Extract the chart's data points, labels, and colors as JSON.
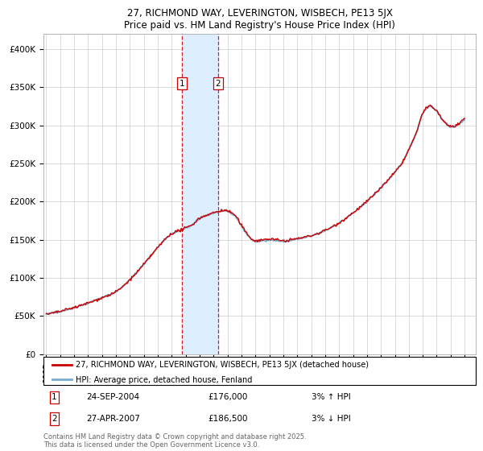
{
  "title_line1": "27, RICHMOND WAY, LEVERINGTON, WISBECH, PE13 5JX",
  "title_line2": "Price paid vs. HM Land Registry's House Price Index (HPI)",
  "legend_entry1": "27, RICHMOND WAY, LEVERINGTON, WISBECH, PE13 5JX (detached house)",
  "legend_entry2": "HPI: Average price, detached house, Fenland",
  "transaction1_date": "24-SEP-2004",
  "transaction1_price": "£176,000",
  "transaction1_hpi": "3% ↑ HPI",
  "transaction2_date": "27-APR-2007",
  "transaction2_price": "£186,500",
  "transaction2_hpi": "3% ↓ HPI",
  "copyright_text": "Contains HM Land Registry data © Crown copyright and database right 2025.\nThis data is licensed under the Open Government Licence v3.0.",
  "line_color_red": "#cc0000",
  "line_color_blue": "#7aadcf",
  "shading_color": "#ddeeff",
  "vline_color": "#cc0000",
  "marker1_x_year": 2004.73,
  "marker2_x_year": 2007.32,
  "ylim_min": 0,
  "ylim_max": 420000,
  "xlim_min": 1994.8,
  "xlim_max": 2025.8,
  "yticks": [
    0,
    50000,
    100000,
    150000,
    200000,
    250000,
    300000,
    350000,
    400000
  ],
  "ytick_labels": [
    "£0",
    "£50K",
    "£100K",
    "£150K",
    "£200K",
    "£250K",
    "£300K",
    "£350K",
    "£400K"
  ]
}
